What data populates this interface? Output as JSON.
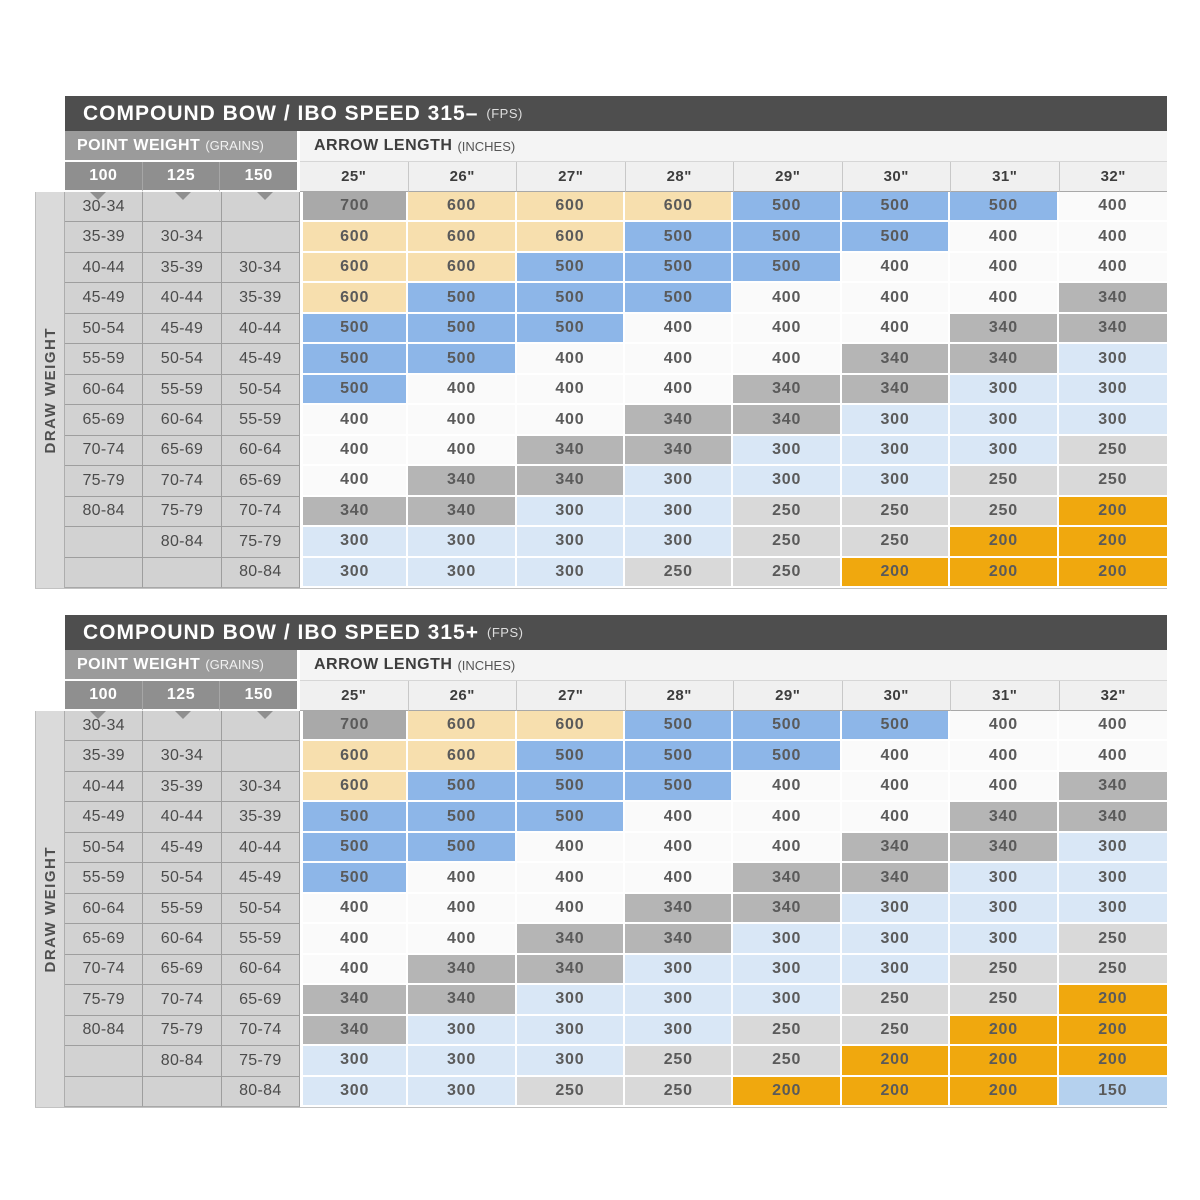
{
  "chart_data": {
    "type": "table",
    "value_colors": {
      "700": "#a9a9a9",
      "600": "#f7dfae",
      "500": "#8db6e8",
      "400": "#fafafa",
      "340": "#b5b5b5",
      "300": "#d9e7f6",
      "250": "#d9d9d9",
      "200": "#f0a80e",
      "150": "#b5d1ee"
    },
    "tables": [
      {
        "title": "COMPOUND BOW / IBO SPEED 315–",
        "title_unit": "(FPS)",
        "point_weight_label": "POINT WEIGHT",
        "point_weight_unit": "(GRAINS)",
        "arrow_length_label": "ARROW LENGTH",
        "arrow_length_unit": "(INCHES)",
        "draw_weight_label": "DRAW WEIGHT",
        "point_weight_columns": [
          "100",
          "125",
          "150"
        ],
        "arrow_length_columns": [
          "25\"",
          "26\"",
          "27\"",
          "28\"",
          "29\"",
          "30\"",
          "31\"",
          "32\""
        ],
        "rows": [
          {
            "draw_weights": [
              "30-34",
              "",
              ""
            ],
            "values": [
              700,
              600,
              600,
              600,
              500,
              500,
              500,
              400
            ]
          },
          {
            "draw_weights": [
              "35-39",
              "30-34",
              ""
            ],
            "values": [
              600,
              600,
              600,
              500,
              500,
              500,
              400,
              400
            ]
          },
          {
            "draw_weights": [
              "40-44",
              "35-39",
              "30-34"
            ],
            "values": [
              600,
              600,
              500,
              500,
              500,
              400,
              400,
              400
            ]
          },
          {
            "draw_weights": [
              "45-49",
              "40-44",
              "35-39"
            ],
            "values": [
              600,
              500,
              500,
              500,
              400,
              400,
              400,
              340
            ]
          },
          {
            "draw_weights": [
              "50-54",
              "45-49",
              "40-44"
            ],
            "values": [
              500,
              500,
              500,
              400,
              400,
              400,
              340,
              340
            ]
          },
          {
            "draw_weights": [
              "55-59",
              "50-54",
              "45-49"
            ],
            "values": [
              500,
              500,
              400,
              400,
              400,
              340,
              340,
              300
            ]
          },
          {
            "draw_weights": [
              "60-64",
              "55-59",
              "50-54"
            ],
            "values": [
              500,
              400,
              400,
              400,
              340,
              340,
              300,
              300
            ]
          },
          {
            "draw_weights": [
              "65-69",
              "60-64",
              "55-59"
            ],
            "values": [
              400,
              400,
              400,
              340,
              340,
              300,
              300,
              300
            ]
          },
          {
            "draw_weights": [
              "70-74",
              "65-69",
              "60-64"
            ],
            "values": [
              400,
              400,
              340,
              340,
              300,
              300,
              300,
              250
            ]
          },
          {
            "draw_weights": [
              "75-79",
              "70-74",
              "65-69"
            ],
            "values": [
              400,
              340,
              340,
              300,
              300,
              300,
              250,
              250
            ]
          },
          {
            "draw_weights": [
              "80-84",
              "75-79",
              "70-74"
            ],
            "values": [
              340,
              340,
              300,
              300,
              250,
              250,
              250,
              200
            ]
          },
          {
            "draw_weights": [
              "",
              "80-84",
              "75-79"
            ],
            "values": [
              300,
              300,
              300,
              300,
              250,
              250,
              200,
              200
            ]
          },
          {
            "draw_weights": [
              "",
              "",
              "80-84"
            ],
            "values": [
              300,
              300,
              300,
              250,
              250,
              200,
              200,
              200
            ]
          }
        ]
      },
      {
        "title": "COMPOUND BOW / IBO SPEED 315+",
        "title_unit": "(FPS)",
        "point_weight_label": "POINT WEIGHT",
        "point_weight_unit": "(GRAINS)",
        "arrow_length_label": "ARROW LENGTH",
        "arrow_length_unit": "(INCHES)",
        "draw_weight_label": "DRAW WEIGHT",
        "point_weight_columns": [
          "100",
          "125",
          "150"
        ],
        "arrow_length_columns": [
          "25\"",
          "26\"",
          "27\"",
          "28\"",
          "29\"",
          "30\"",
          "31\"",
          "32\""
        ],
        "rows": [
          {
            "draw_weights": [
              "30-34",
              "",
              ""
            ],
            "values": [
              700,
              600,
              600,
              500,
              500,
              500,
              400,
              400
            ]
          },
          {
            "draw_weights": [
              "35-39",
              "30-34",
              ""
            ],
            "values": [
              600,
              600,
              500,
              500,
              500,
              400,
              400,
              400
            ]
          },
          {
            "draw_weights": [
              "40-44",
              "35-39",
              "30-34"
            ],
            "values": [
              600,
              500,
              500,
              500,
              400,
              400,
              400,
              340
            ]
          },
          {
            "draw_weights": [
              "45-49",
              "40-44",
              "35-39"
            ],
            "values": [
              500,
              500,
              500,
              400,
              400,
              400,
              340,
              340
            ]
          },
          {
            "draw_weights": [
              "50-54",
              "45-49",
              "40-44"
            ],
            "values": [
              500,
              500,
              400,
              400,
              400,
              340,
              340,
              300
            ]
          },
          {
            "draw_weights": [
              "55-59",
              "50-54",
              "45-49"
            ],
            "values": [
              500,
              400,
              400,
              400,
              340,
              340,
              300,
              300
            ]
          },
          {
            "draw_weights": [
              "60-64",
              "55-59",
              "50-54"
            ],
            "values": [
              400,
              400,
              400,
              340,
              340,
              300,
              300,
              300
            ]
          },
          {
            "draw_weights": [
              "65-69",
              "60-64",
              "55-59"
            ],
            "values": [
              400,
              400,
              340,
              340,
              300,
              300,
              300,
              250
            ]
          },
          {
            "draw_weights": [
              "70-74",
              "65-69",
              "60-64"
            ],
            "values": [
              400,
              340,
              340,
              300,
              300,
              300,
              250,
              250
            ]
          },
          {
            "draw_weights": [
              "75-79",
              "70-74",
              "65-69"
            ],
            "values": [
              340,
              340,
              300,
              300,
              300,
              250,
              250,
              200
            ]
          },
          {
            "draw_weights": [
              "80-84",
              "75-79",
              "70-74"
            ],
            "values": [
              340,
              300,
              300,
              300,
              250,
              250,
              200,
              200
            ]
          },
          {
            "draw_weights": [
              "",
              "80-84",
              "75-79"
            ],
            "values": [
              300,
              300,
              300,
              250,
              250,
              200,
              200,
              200
            ]
          },
          {
            "draw_weights": [
              "",
              "",
              "80-84"
            ],
            "values": [
              300,
              300,
              250,
              250,
              200,
              200,
              200,
              150
            ]
          }
        ]
      }
    ]
  }
}
